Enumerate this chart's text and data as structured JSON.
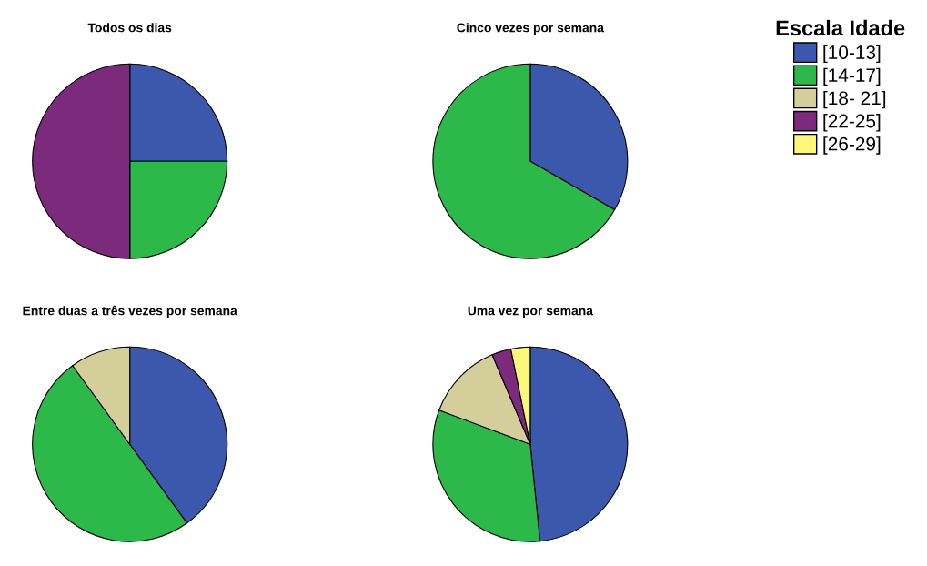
{
  "chart_data": [
    {
      "type": "pie",
      "title": "Todos os dias",
      "categories": [
        "[10-13]",
        "[14-17]",
        "[18- 21]",
        "[22-25]",
        "[26-29]"
      ],
      "values": [
        25,
        25,
        0,
        50,
        0
      ],
      "colors": [
        "#3c58ad",
        "#2db84a",
        "#d4ce9a",
        "#7b2a7c",
        "#fbf77a"
      ],
      "legend": "right",
      "legend_title": "Escala Idade"
    },
    {
      "type": "pie",
      "title": "Cinco vezes por semana",
      "categories": [
        null,
        null
      ],
      "values": [
        33.3,
        66.7
      ],
      "colors": [
        "#3c58ad",
        "#2db84a"
      ]
    },
    {
      "type": "pie",
      "title": "Entre duas a três vezes por semana",
      "categories": [
        null,
        null,
        null
      ],
      "values": [
        40,
        50,
        10
      ],
      "colors": [
        "#3c58ad",
        "#2db84a",
        "#d4ce9a"
      ]
    },
    {
      "type": "pie",
      "title": "Uma vez por semana",
      "categories": [
        null,
        null,
        null,
        null,
        null
      ],
      "values": [
        48.4,
        32.3,
        12.9,
        3.2,
        3.2
      ],
      "colors": [
        "#3c58ad",
        "#2db84a",
        "#d4ce9a",
        "#7b2a7c",
        "#fbf77a"
      ]
    }
  ]
}
